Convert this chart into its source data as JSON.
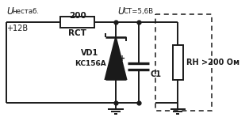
{
  "bg_color": "#ffffff",
  "line_color": "#1a1a1a",
  "lw": 1.4,
  "labels": {
    "U_italic": "U",
    "nestab": "нестаб.",
    "plus12V": "+12В",
    "R_val": "200",
    "R_name": "RСТ",
    "U_ct_italic": "U",
    "Uct_sub": "СТ",
    "Uct_val": "=5,6В",
    "VD1": "VD1",
    "KS156A": "КС156А",
    "C1": "C1",
    "RH": "RН >200 Ом"
  }
}
